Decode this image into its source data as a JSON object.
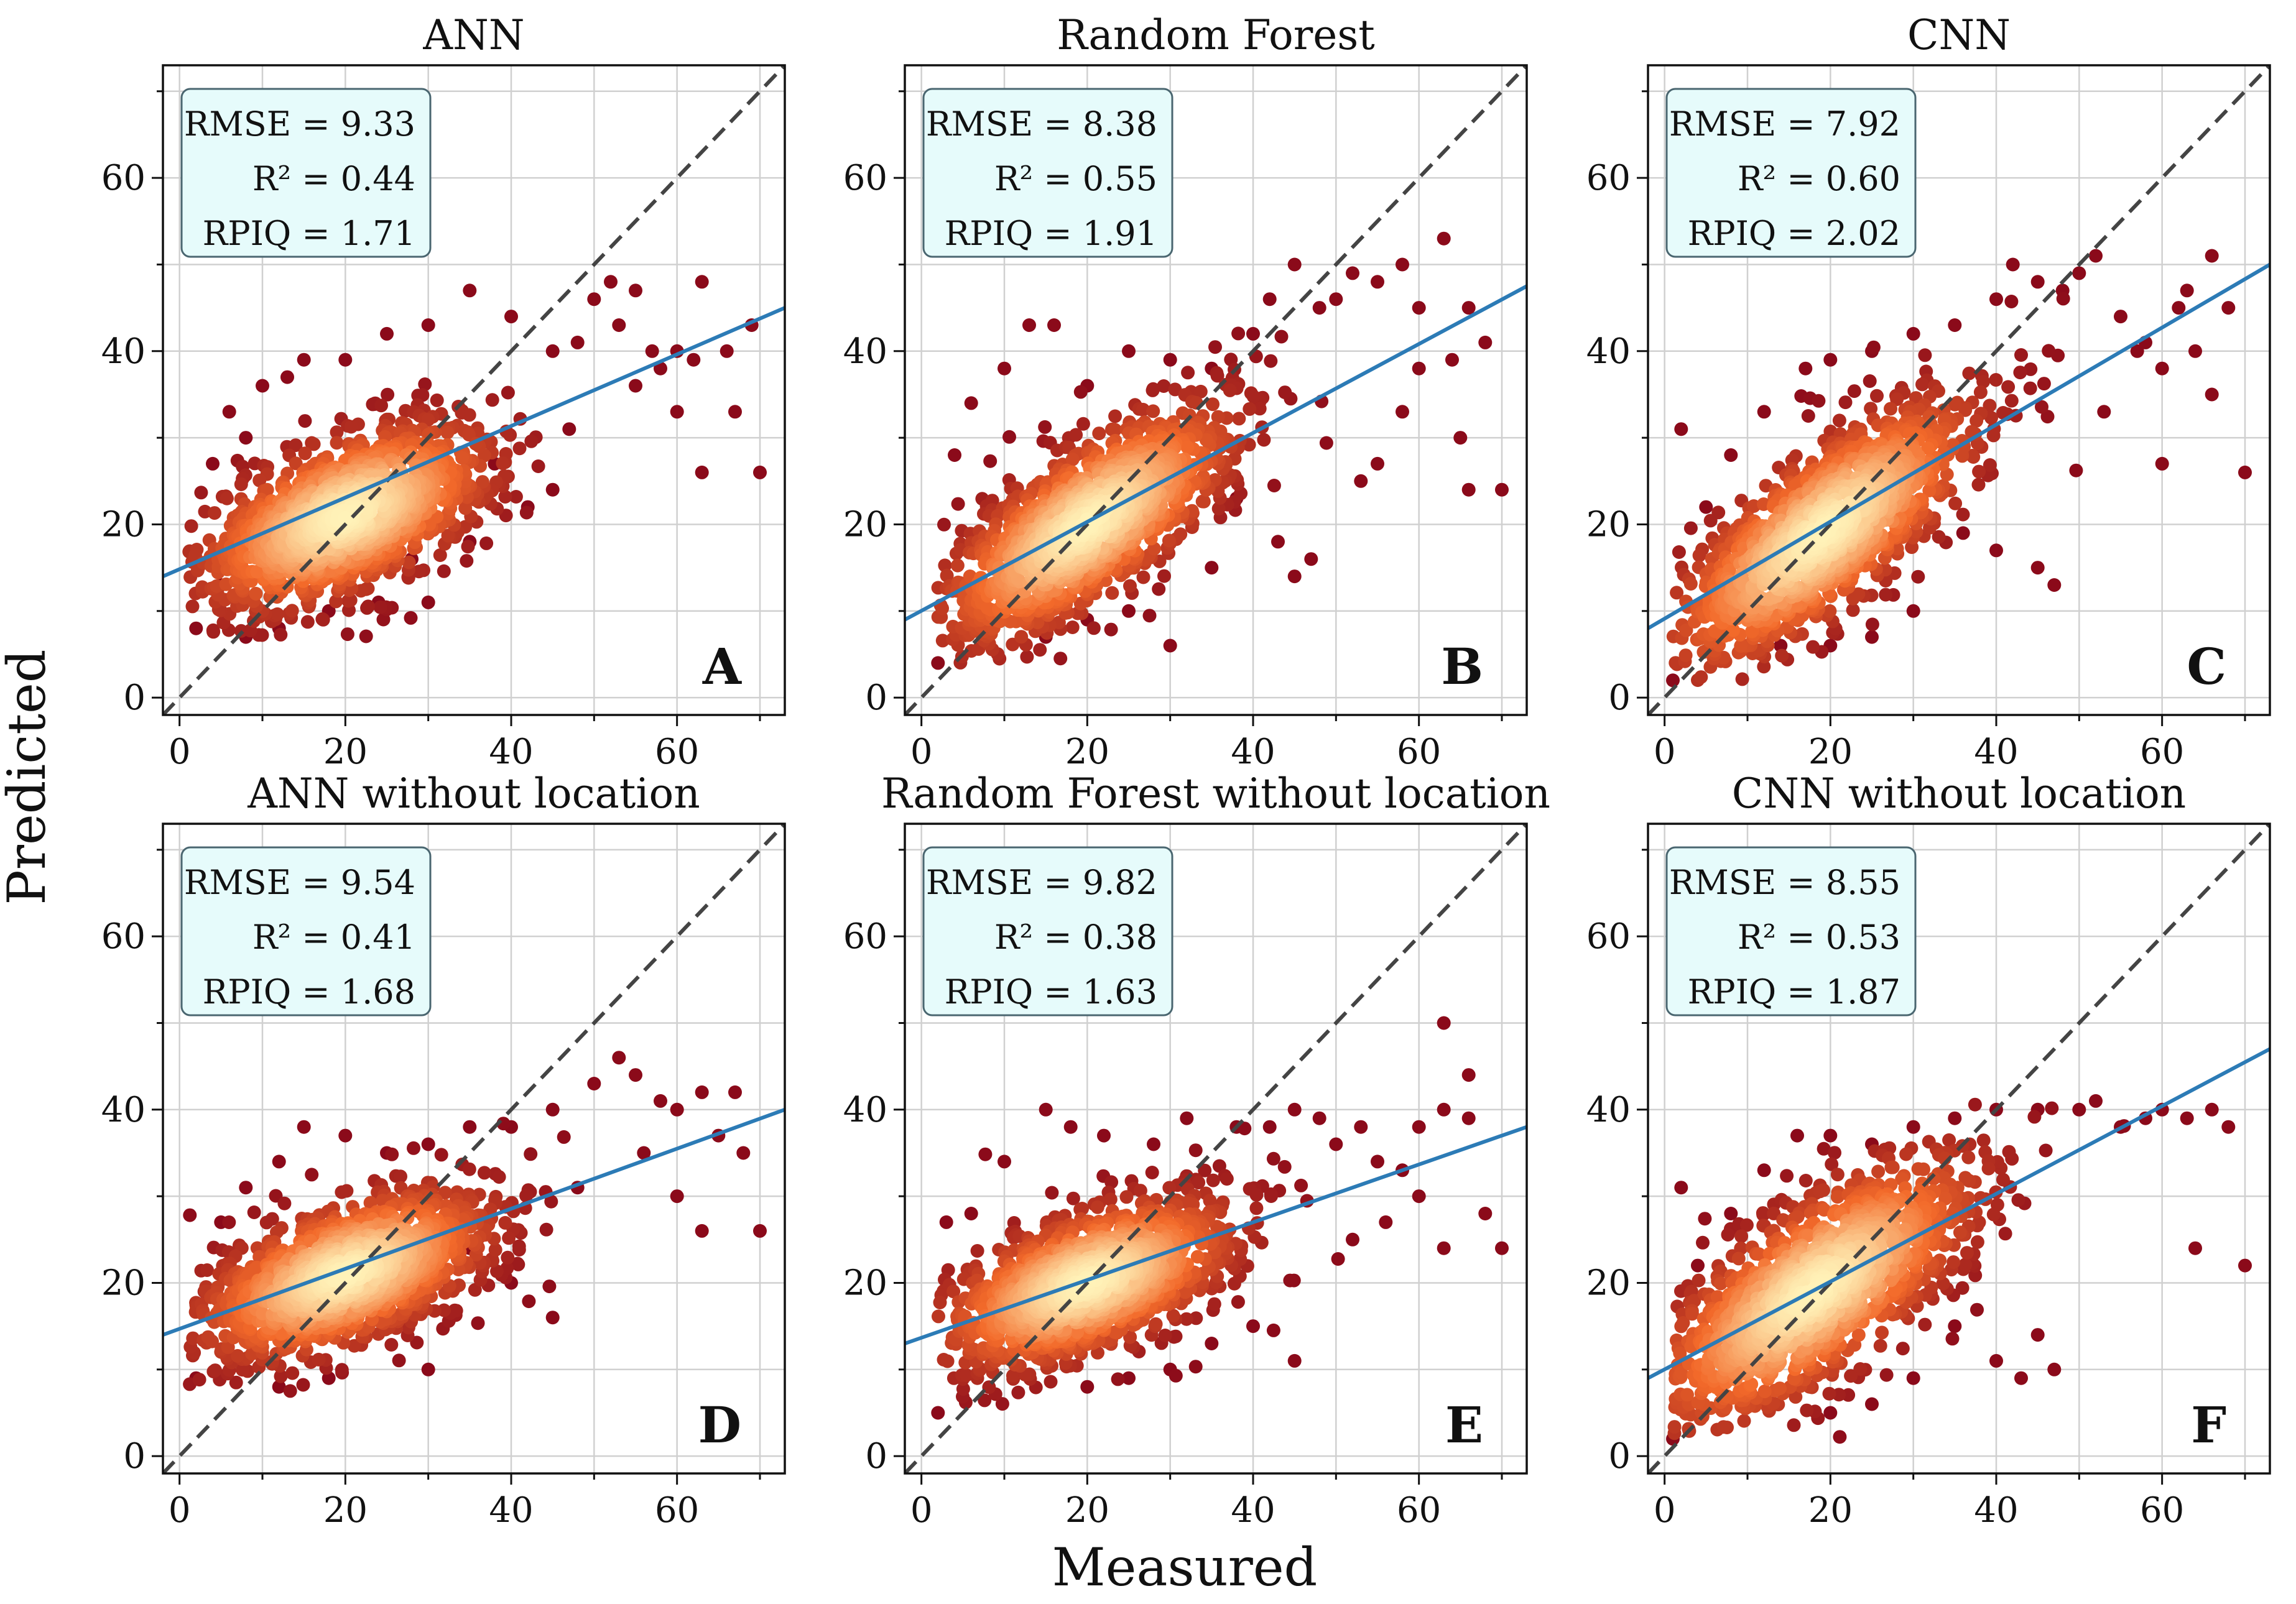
{
  "figure": {
    "xlabel": "Measured",
    "ylabel": "Predicted",
    "colors": {
      "fit_line": "#2c7bb6",
      "identity_line": "#444444",
      "stats_box_fill": "#e6fbfb",
      "stats_box_edge": "#4a6670",
      "grid": "#d0d0d0",
      "density_low": "#8b0a1a",
      "density_mid": "#f36a2a",
      "density_high": "#fff2b8"
    }
  },
  "chart_data": [
    {
      "type": "scatter",
      "title": "ANN",
      "panel_letter": "A",
      "xlabel": "Measured",
      "ylabel": "Predicted",
      "xlim": [
        -2,
        73
      ],
      "ylim": [
        -2,
        73
      ],
      "xticks": [
        "0",
        "20",
        "40",
        "60"
      ],
      "yticks": [
        "0",
        "20",
        "40",
        "60"
      ],
      "grid": true,
      "stats": [
        {
          "label": "RMSE = ",
          "value": "9.33"
        },
        {
          "label": "R² = ",
          "value": "0.44"
        },
        {
          "label": "RPIQ = ",
          "value": "1.71"
        }
      ],
      "fit_line": {
        "x": [
          -2,
          73
        ],
        "y": [
          14.0,
          45.0
        ]
      },
      "identity_line": {
        "x": [
          -2,
          73
        ],
        "y": [
          -2,
          73
        ]
      },
      "point_cloud": {
        "center": [
          20,
          21
        ],
        "spread": [
          9,
          5.5
        ],
        "corr": 0.55,
        "count": 1300,
        "x_range": [
          1,
          70
        ],
        "y_range": [
          7,
          48
        ]
      },
      "outliers": [
        [
          2,
          8
        ],
        [
          5,
          13
        ],
        [
          8,
          30
        ],
        [
          10,
          36
        ],
        [
          13,
          37
        ],
        [
          15,
          39
        ],
        [
          20,
          39
        ],
        [
          25,
          42
        ],
        [
          30,
          43
        ],
        [
          35,
          47
        ],
        [
          40,
          44
        ],
        [
          45,
          40
        ],
        [
          48,
          41
        ],
        [
          50,
          46
        ],
        [
          52,
          48
        ],
        [
          55,
          47
        ],
        [
          58,
          38
        ],
        [
          60,
          40
        ],
        [
          63,
          48
        ],
        [
          63,
          26
        ],
        [
          66,
          40
        ],
        [
          67,
          33
        ],
        [
          69,
          43
        ],
        [
          70,
          26
        ],
        [
          30,
          11
        ],
        [
          45,
          24
        ],
        [
          55,
          36
        ],
        [
          60,
          33
        ],
        [
          42,
          22
        ],
        [
          38,
          27
        ],
        [
          12,
          8
        ],
        [
          8,
          7
        ],
        [
          18,
          10
        ],
        [
          24,
          11
        ],
        [
          28,
          16
        ],
        [
          35,
          18
        ],
        [
          47,
          31
        ],
        [
          53,
          43
        ],
        [
          57,
          40
        ],
        [
          62,
          39
        ],
        [
          4,
          27
        ],
        [
          6,
          33
        ]
      ]
    },
    {
      "type": "scatter",
      "title": "Random Forest",
      "panel_letter": "B",
      "xlabel": "Measured",
      "ylabel": "Predicted",
      "xlim": [
        -2,
        73
      ],
      "ylim": [
        -2,
        73
      ],
      "xticks": [
        "0",
        "20",
        "40",
        "60"
      ],
      "yticks": [
        "0",
        "20",
        "40",
        "60"
      ],
      "grid": true,
      "stats": [
        {
          "label": "RMSE = ",
          "value": "8.38"
        },
        {
          "label": "R² = ",
          "value": "0.55"
        },
        {
          "label": "RPIQ = ",
          "value": "1.91"
        }
      ],
      "fit_line": {
        "x": [
          -2,
          73
        ],
        "y": [
          9.0,
          47.5
        ]
      },
      "identity_line": {
        "x": [
          -2,
          73
        ],
        "y": [
          -2,
          73
        ]
      },
      "point_cloud": {
        "center": [
          20,
          20
        ],
        "spread": [
          9,
          7
        ],
        "corr": 0.72,
        "count": 1300,
        "x_range": [
          2,
          70
        ],
        "y_range": [
          4,
          46
        ]
      },
      "outliers": [
        [
          2,
          4
        ],
        [
          4,
          28
        ],
        [
          6,
          34
        ],
        [
          10,
          38
        ],
        [
          13,
          43
        ],
        [
          16,
          43
        ],
        [
          20,
          36
        ],
        [
          25,
          40
        ],
        [
          30,
          39
        ],
        [
          35,
          38
        ],
        [
          40,
          42
        ],
        [
          42,
          46
        ],
        [
          45,
          50
        ],
        [
          48,
          45
        ],
        [
          50,
          46
        ],
        [
          52,
          49
        ],
        [
          55,
          48
        ],
        [
          58,
          50
        ],
        [
          60,
          45
        ],
        [
          63,
          53
        ],
        [
          64,
          39
        ],
        [
          65,
          30
        ],
        [
          66,
          45
        ],
        [
          66,
          24
        ],
        [
          68,
          41
        ],
        [
          70,
          24
        ],
        [
          30,
          6
        ],
        [
          45,
          14
        ],
        [
          47,
          16
        ],
        [
          43,
          18
        ],
        [
          38,
          23
        ],
        [
          55,
          27
        ],
        [
          58,
          33
        ],
        [
          60,
          38
        ],
        [
          53,
          25
        ],
        [
          25,
          10
        ],
        [
          20,
          9
        ],
        [
          15,
          7
        ],
        [
          35,
          15
        ]
      ]
    },
    {
      "type": "scatter",
      "title": "CNN",
      "panel_letter": "C",
      "xlabel": "Measured",
      "ylabel": "Predicted",
      "xlim": [
        -2,
        73
      ],
      "ylim": [
        -2,
        73
      ],
      "xticks": [
        "0",
        "20",
        "40",
        "60"
      ],
      "yticks": [
        "0",
        "20",
        "40",
        "60"
      ],
      "grid": true,
      "stats": [
        {
          "label": "RMSE = ",
          "value": "7.92"
        },
        {
          "label": "R² = ",
          "value": "0.60"
        },
        {
          "label": "RPIQ = ",
          "value": "2.02"
        }
      ],
      "fit_line": {
        "x": [
          -2,
          73
        ],
        "y": [
          8.0,
          50.0
        ]
      },
      "identity_line": {
        "x": [
          -2,
          73
        ],
        "y": [
          -2,
          73
        ]
      },
      "point_cloud": {
        "center": [
          19,
          19
        ],
        "spread": [
          9.5,
          8
        ],
        "corr": 0.76,
        "count": 1300,
        "x_range": [
          1,
          70
        ],
        "y_range": [
          2,
          51
        ]
      },
      "outliers": [
        [
          1,
          2
        ],
        [
          2,
          31
        ],
        [
          5,
          22
        ],
        [
          8,
          28
        ],
        [
          12,
          33
        ],
        [
          17,
          38
        ],
        [
          20,
          39
        ],
        [
          25,
          40
        ],
        [
          30,
          42
        ],
        [
          35,
          43
        ],
        [
          40,
          46
        ],
        [
          42,
          50
        ],
        [
          45,
          48
        ],
        [
          48,
          47
        ],
        [
          50,
          49
        ],
        [
          52,
          51
        ],
        [
          55,
          44
        ],
        [
          58,
          41
        ],
        [
          60,
          38
        ],
        [
          62,
          45
        ],
        [
          63,
          47
        ],
        [
          64,
          40
        ],
        [
          66,
          51
        ],
        [
          66,
          35
        ],
        [
          68,
          45
        ],
        [
          70,
          26
        ],
        [
          60,
          27
        ],
        [
          47,
          13
        ],
        [
          45,
          15
        ],
        [
          40,
          17
        ],
        [
          36,
          19
        ],
        [
          53,
          33
        ],
        [
          57,
          40
        ],
        [
          25,
          7
        ],
        [
          20,
          6
        ],
        [
          30,
          10
        ],
        [
          14,
          6
        ]
      ]
    },
    {
      "type": "scatter",
      "title": "ANN without location",
      "panel_letter": "D",
      "xlabel": "Measured",
      "ylabel": "Predicted",
      "xlim": [
        -2,
        73
      ],
      "ylim": [
        -2,
        73
      ],
      "xticks": [
        "0",
        "20",
        "40",
        "60"
      ],
      "yticks": [
        "0",
        "20",
        "40",
        "60"
      ],
      "grid": true,
      "stats": [
        {
          "label": "RMSE = ",
          "value": "9.54"
        },
        {
          "label": "R² = ",
          "value": "0.41"
        },
        {
          "label": "RPIQ = ",
          "value": "1.68"
        }
      ],
      "fit_line": {
        "x": [
          -2,
          73
        ],
        "y": [
          14.0,
          40.0
        ]
      },
      "identity_line": {
        "x": [
          -2,
          73
        ],
        "y": [
          -2,
          73
        ]
      },
      "point_cloud": {
        "center": [
          20,
          21
        ],
        "spread": [
          9,
          5
        ],
        "corr": 0.55,
        "count": 1300,
        "x_range": [
          1,
          70
        ],
        "y_range": [
          7,
          46
        ]
      },
      "outliers": [
        [
          2,
          9
        ],
        [
          3,
          19
        ],
        [
          5,
          27
        ],
        [
          8,
          31
        ],
        [
          12,
          34
        ],
        [
          15,
          38
        ],
        [
          20,
          37
        ],
        [
          25,
          35
        ],
        [
          30,
          36
        ],
        [
          35,
          38
        ],
        [
          40,
          38
        ],
        [
          45,
          40
        ],
        [
          50,
          43
        ],
        [
          53,
          46
        ],
        [
          55,
          44
        ],
        [
          58,
          41
        ],
        [
          60,
          40
        ],
        [
          63,
          42
        ],
        [
          65,
          37
        ],
        [
          67,
          42
        ],
        [
          68,
          35
        ],
        [
          70,
          26
        ],
        [
          63,
          26
        ],
        [
          30,
          10
        ],
        [
          45,
          16
        ],
        [
          12,
          8
        ],
        [
          18,
          9
        ],
        [
          40,
          20
        ],
        [
          35,
          24
        ],
        [
          48,
          31
        ],
        [
          56,
          35
        ],
        [
          60,
          30
        ]
      ]
    },
    {
      "type": "scatter",
      "title": "Random Forest without location",
      "panel_letter": "E",
      "xlabel": "Measured",
      "ylabel": "Predicted",
      "xlim": [
        -2,
        73
      ],
      "ylim": [
        -2,
        73
      ],
      "xticks": [
        "0",
        "20",
        "40",
        "60"
      ],
      "yticks": [
        "0",
        "20",
        "40",
        "60"
      ],
      "grid": true,
      "stats": [
        {
          "label": "RMSE = ",
          "value": "9.82"
        },
        {
          "label": "R² = ",
          "value": "0.38"
        },
        {
          "label": "RPIQ = ",
          "value": "1.63"
        }
      ],
      "fit_line": {
        "x": [
          -2,
          73
        ],
        "y": [
          13.0,
          38.0
        ]
      },
      "identity_line": {
        "x": [
          -2,
          73
        ],
        "y": [
          -2,
          73
        ]
      },
      "point_cloud": {
        "center": [
          20,
          20
        ],
        "spread": [
          9,
          5
        ],
        "corr": 0.55,
        "count": 1300,
        "x_range": [
          2,
          70
        ],
        "y_range": [
          5,
          40
        ]
      },
      "outliers": [
        [
          2,
          5
        ],
        [
          3,
          27
        ],
        [
          6,
          28
        ],
        [
          10,
          34
        ],
        [
          15,
          40
        ],
        [
          18,
          38
        ],
        [
          22,
          37
        ],
        [
          28,
          36
        ],
        [
          32,
          39
        ],
        [
          38,
          38
        ],
        [
          42,
          38
        ],
        [
          45,
          40
        ],
        [
          48,
          39
        ],
        [
          50,
          36
        ],
        [
          53,
          38
        ],
        [
          55,
          34
        ],
        [
          58,
          33
        ],
        [
          60,
          38
        ],
        [
          63,
          50
        ],
        [
          63,
          40
        ],
        [
          63,
          24
        ],
        [
          66,
          44
        ],
        [
          66,
          39
        ],
        [
          68,
          28
        ],
        [
          70,
          24
        ],
        [
          45,
          11
        ],
        [
          40,
          15
        ],
        [
          30,
          10
        ],
        [
          35,
          13
        ],
        [
          52,
          25
        ],
        [
          56,
          27
        ],
        [
          60,
          30
        ],
        [
          25,
          9
        ],
        [
          20,
          8
        ]
      ]
    },
    {
      "type": "scatter",
      "title": "CNN without location",
      "panel_letter": "F",
      "xlabel": "Measured",
      "ylabel": "Predicted",
      "xlim": [
        -2,
        73
      ],
      "ylim": [
        -2,
        73
      ],
      "xticks": [
        "0",
        "20",
        "40",
        "60"
      ],
      "yticks": [
        "0",
        "20",
        "40",
        "60"
      ],
      "grid": true,
      "stats": [
        {
          "label": "RMSE = ",
          "value": "8.55"
        },
        {
          "label": "R² = ",
          "value": "0.53"
        },
        {
          "label": "RPIQ = ",
          "value": "1.87"
        }
      ],
      "fit_line": {
        "x": [
          -2,
          73
        ],
        "y": [
          9.0,
          47.0
        ]
      },
      "identity_line": {
        "x": [
          -2,
          73
        ],
        "y": [
          -2,
          73
        ]
      },
      "point_cloud": {
        "center": [
          18,
          19
        ],
        "spread": [
          10,
          8
        ],
        "corr": 0.72,
        "count": 1300,
        "x_range": [
          1,
          70
        ],
        "y_range": [
          2,
          41
        ]
      },
      "outliers": [
        [
          1,
          2
        ],
        [
          2,
          31
        ],
        [
          4,
          22
        ],
        [
          8,
          28
        ],
        [
          12,
          33
        ],
        [
          16,
          37
        ],
        [
          20,
          37
        ],
        [
          25,
          36
        ],
        [
          30,
          38
        ],
        [
          35,
          39
        ],
        [
          40,
          40
        ],
        [
          45,
          40
        ],
        [
          50,
          40
        ],
        [
          52,
          41
        ],
        [
          55,
          38
        ],
        [
          58,
          39
        ],
        [
          60,
          40
        ],
        [
          63,
          39
        ],
        [
          64,
          24
        ],
        [
          66,
          40
        ],
        [
          68,
          38
        ],
        [
          70,
          22
        ],
        [
          47,
          10
        ],
        [
          45,
          14
        ],
        [
          40,
          11
        ],
        [
          43,
          9
        ],
        [
          35,
          15
        ],
        [
          25,
          6
        ],
        [
          20,
          5
        ],
        [
          30,
          9
        ]
      ]
    }
  ]
}
